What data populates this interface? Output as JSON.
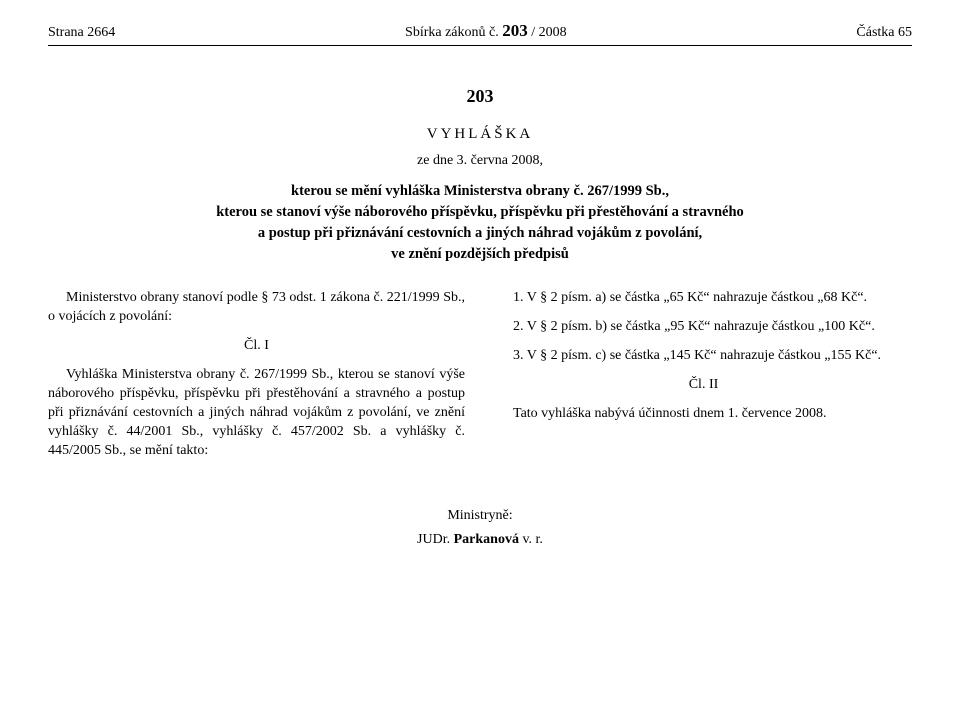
{
  "header": {
    "left_label": "Strana",
    "left_page": "2664",
    "center_prefix": "Sbírka zákonů č.",
    "center_num": "203",
    "center_suffix": " / 2008",
    "right_label": "Částka",
    "right_num": "65"
  },
  "doc": {
    "number": "203",
    "type": "VYHLÁŠKA",
    "date": "ze dne 3. června 2008,",
    "title_line1": "kterou se mění vyhláška Ministerstva obrany č. 267/1999 Sb.,",
    "title_line2": "kterou se stanoví výše náborového příspěvku, příspěvku při přestěhování a stravného",
    "title_line3": "a postup při přiznávání cestovních a jiných náhrad vojákům z povolání,",
    "title_line4": "ve znění pozdějších předpisů"
  },
  "left_col": {
    "p1": "Ministerstvo obrany stanoví podle § 73 odst. 1 zákona č. 221/1999 Sb., o vojácích z povolání:",
    "art1": "Čl. I",
    "p2": "Vyhláška Ministerstva obrany č. 267/1999 Sb., kterou se stanoví výše náborového příspěvku, příspěvku při přestěhování a stravného a postup při přiznávání cestovních a jiných náhrad vojákům z povolání, ve znění vyhlášky č. 44/2001 Sb., vyhlášky č. 457/2002 Sb. a vyhlášky č. 445/2005 Sb., se mění takto:"
  },
  "right_col": {
    "p1": "1. V § 2 písm. a) se částka „65 Kč“ nahrazuje částkou „68 Kč“.",
    "p2": "2. V § 2 písm. b) se částka „95 Kč“ nahrazuje částkou „100 Kč“.",
    "p3": "3. V § 2 písm. c) se částka „145 Kč“ nahrazuje částkou „155 Kč“.",
    "art2": "Čl. II",
    "p4": "Tato vyhláška nabývá účinnosti dnem 1. července 2008."
  },
  "signature": {
    "role": "Ministryně:",
    "name_prefix": "JUDr. ",
    "name_bold": "Parkanová",
    "name_suffix": " v. r."
  }
}
